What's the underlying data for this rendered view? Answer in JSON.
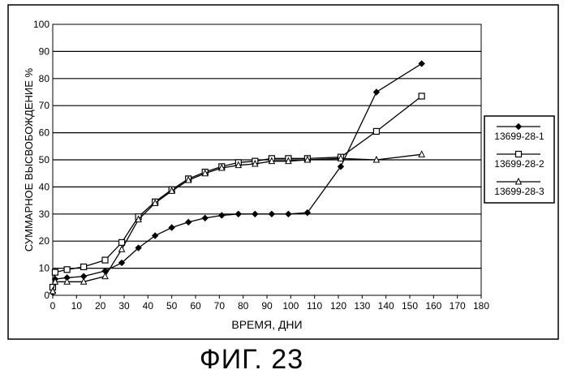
{
  "caption": "ФИГ. 23",
  "chart_data": {
    "type": "line",
    "title": "",
    "xlabel": "ВРЕМЯ, ДНИ",
    "ylabel": "СУММАРНОЕ ВЫСВОБОЖДЕНИЕ %",
    "xlim": [
      0,
      180
    ],
    "ylim": [
      0,
      100
    ],
    "x_ticks": [
      0,
      10,
      20,
      30,
      40,
      50,
      60,
      70,
      80,
      90,
      100,
      110,
      120,
      130,
      140,
      150,
      160,
      170,
      180
    ],
    "y_ticks": [
      0,
      10,
      20,
      30,
      40,
      50,
      60,
      70,
      80,
      90,
      100
    ],
    "grid": "horizontal",
    "legend_position": "right",
    "series": [
      {
        "name": "13699-28-1",
        "marker": "filled-diamond",
        "points": [
          [
            0,
            1
          ],
          [
            1,
            6
          ],
          [
            6,
            6.5
          ],
          [
            13,
            7
          ],
          [
            22,
            9
          ],
          [
            29,
            12
          ],
          [
            36,
            17.5
          ],
          [
            43,
            22
          ],
          [
            50,
            25
          ],
          [
            57,
            27
          ],
          [
            64,
            28.5
          ],
          [
            71,
            29.5
          ],
          [
            78,
            30
          ],
          [
            85,
            30
          ],
          [
            92,
            30
          ],
          [
            99,
            30
          ],
          [
            107,
            30.5
          ],
          [
            121,
            47.5
          ],
          [
            136,
            75
          ],
          [
            155,
            85.5
          ]
        ]
      },
      {
        "name": "13699-28-2",
        "marker": "open-square",
        "points": [
          [
            0,
            3
          ],
          [
            1,
            8.5
          ],
          [
            6,
            9.5
          ],
          [
            13,
            10.5
          ],
          [
            22,
            13
          ],
          [
            29,
            19.5
          ],
          [
            36,
            29
          ],
          [
            43,
            34.5
          ],
          [
            50,
            39
          ],
          [
            57,
            43
          ],
          [
            64,
            45.5
          ],
          [
            71,
            47.5
          ],
          [
            78,
            49
          ],
          [
            85,
            49.5
          ],
          [
            92,
            50.5
          ],
          [
            99,
            50.5
          ],
          [
            107,
            50.5
          ],
          [
            121,
            51
          ],
          [
            136,
            60.5
          ],
          [
            155,
            73.5
          ]
        ]
      },
      {
        "name": "13699-28-3",
        "marker": "open-triangle",
        "points": [
          [
            0,
            1.5
          ],
          [
            1,
            5
          ],
          [
            6,
            5
          ],
          [
            13,
            5
          ],
          [
            22,
            7
          ],
          [
            29,
            17
          ],
          [
            36,
            28
          ],
          [
            43,
            34
          ],
          [
            50,
            38.5
          ],
          [
            57,
            42.5
          ],
          [
            64,
            45
          ],
          [
            71,
            47
          ],
          [
            78,
            48
          ],
          [
            85,
            48.5
          ],
          [
            92,
            49.5
          ],
          [
            99,
            49.5
          ],
          [
            107,
            50
          ],
          [
            121,
            50.5
          ],
          [
            136,
            50
          ],
          [
            155,
            52
          ]
        ]
      }
    ]
  }
}
